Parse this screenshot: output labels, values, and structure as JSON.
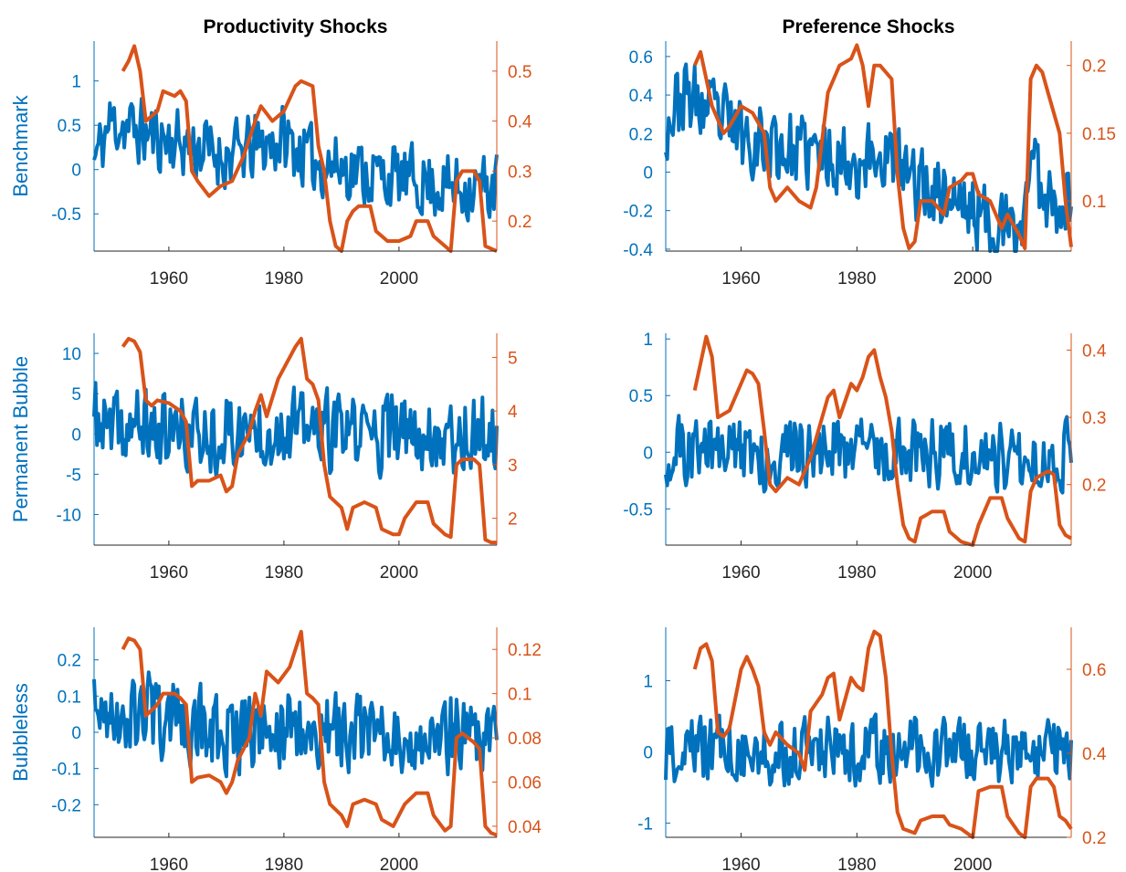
{
  "figure": {
    "column_titles": [
      "Productivity Shocks",
      "Preference Shocks"
    ],
    "row_labels": [
      "Benchmark",
      "Permanent Bubble",
      "Bubbleless"
    ],
    "colors": {
      "left_axis": "#0072BD",
      "right_axis": "#D95319",
      "axes_line": "#262626"
    }
  },
  "chart_data": [
    {
      "type": "line",
      "row": 0,
      "col": 0,
      "title": "Productivity Shocks",
      "ylabel": "Benchmark",
      "xlim": [
        1947,
        2017
      ],
      "xticks": [
        1960,
        1980,
        2000
      ],
      "ylim_left": [
        -0.92,
        1.45
      ],
      "yticks_left": [
        -0.5,
        0,
        0.5,
        1
      ],
      "ylim_right": [
        0.14,
        0.56
      ],
      "yticks_right": [
        0.2,
        0.3,
        0.4,
        0.5
      ],
      "series_left": {
        "x_start": 1947,
        "x_end": 2017,
        "jitter": 0.35,
        "seed": 11,
        "envelope": [
          1947,
          0.1,
          1950,
          0.55,
          1956,
          0.4,
          1962,
          0.3,
          1970,
          0.15,
          1980,
          0.35,
          1985,
          0.1,
          2000,
          -0.1,
          2010,
          -0.2,
          2017,
          -0.2
        ]
      },
      "series_right": {
        "points": [
          1952,
          0.5,
          1953,
          0.52,
          1954,
          0.55,
          1955,
          0.5,
          1956,
          0.4,
          1958,
          0.42,
          1959,
          0.46,
          1961,
          0.45,
          1962,
          0.46,
          1963,
          0.44,
          1964,
          0.3,
          1965,
          0.28,
          1967,
          0.25,
          1969,
          0.27,
          1971,
          0.28,
          1973,
          0.33,
          1975,
          0.4,
          1976,
          0.43,
          1978,
          0.4,
          1980,
          0.42,
          1982,
          0.47,
          1983,
          0.48,
          1985,
          0.47,
          1986,
          0.35,
          1987,
          0.3,
          1988,
          0.2,
          1989,
          0.15,
          1990,
          0.14,
          1991,
          0.2,
          1992,
          0.22,
          1993,
          0.23,
          1995,
          0.23,
          1996,
          0.18,
          1998,
          0.16,
          2000,
          0.16,
          2002,
          0.17,
          2003,
          0.2,
          2005,
          0.2,
          2006,
          0.17,
          2008,
          0.15,
          2009,
          0.14,
          2010,
          0.28,
          2011,
          0.3,
          2013,
          0.3,
          2014,
          0.28,
          2015,
          0.15,
          2016,
          0.145,
          2017,
          0.14
        ]
      }
    },
    {
      "type": "line",
      "row": 0,
      "col": 1,
      "title": "Preference Shocks",
      "ylabel": "",
      "xlim": [
        1947,
        2017
      ],
      "xticks": [
        1960,
        1980,
        2000
      ],
      "ylim_left": [
        -0.41,
        0.68
      ],
      "yticks_left": [
        -0.4,
        -0.2,
        0,
        0.2,
        0.4,
        0.6
      ],
      "ylim_right": [
        0.063,
        0.218
      ],
      "yticks_right": [
        0.1,
        0.15,
        0.2
      ],
      "series_left": {
        "x_start": 1947,
        "x_end": 2017,
        "jitter": 0.18,
        "seed": 23,
        "envelope": [
          1947,
          0.25,
          1950,
          0.4,
          1955,
          0.3,
          1960,
          0.2,
          1965,
          0.15,
          1970,
          0.1,
          1975,
          0.1,
          1980,
          0.05,
          1985,
          0.1,
          1990,
          -0.05,
          1995,
          -0.1,
          2000,
          -0.2,
          2005,
          -0.3,
          2008,
          -0.35,
          2010,
          0.1,
          2012,
          -0.1,
          2017,
          -0.15
        ]
      },
      "series_right": {
        "points": [
          1952,
          0.2,
          1953,
          0.21,
          1954,
          0.19,
          1955,
          0.17,
          1957,
          0.15,
          1958,
          0.155,
          1960,
          0.17,
          1962,
          0.165,
          1964,
          0.15,
          1965,
          0.11,
          1966,
          0.1,
          1968,
          0.11,
          1970,
          0.1,
          1972,
          0.095,
          1973,
          0.11,
          1975,
          0.18,
          1977,
          0.2,
          1979,
          0.205,
          1980,
          0.215,
          1981,
          0.2,
          1982,
          0.17,
          1983,
          0.2,
          1984,
          0.2,
          1986,
          0.19,
          1987,
          0.12,
          1988,
          0.08,
          1989,
          0.065,
          1990,
          0.07,
          1991,
          0.1,
          1993,
          0.1,
          1995,
          0.09,
          1996,
          0.11,
          1998,
          0.115,
          1999,
          0.12,
          2000,
          0.12,
          2001,
          0.105,
          2003,
          0.1,
          2005,
          0.08,
          2006,
          0.09,
          2008,
          0.075,
          2009,
          0.065,
          2010,
          0.19,
          2011,
          0.2,
          2012,
          0.195,
          2013,
          0.18,
          2015,
          0.15,
          2016,
          0.1,
          2017,
          0.066
        ]
      }
    },
    {
      "type": "line",
      "row": 1,
      "col": 0,
      "title": "",
      "ylabel": "Permanent Bubble",
      "xlim": [
        1947,
        2017
      ],
      "xticks": [
        1960,
        1980,
        2000
      ],
      "ylim_left": [
        -13.8,
        12.5
      ],
      "yticks_left": [
        -10,
        -5,
        0,
        5,
        10
      ],
      "ylim_right": [
        1.5,
        5.45
      ],
      "yticks_right": [
        2,
        3,
        4,
        5
      ],
      "series_left": {
        "x_start": 1947,
        "x_end": 2017,
        "jitter": 4.5,
        "seed": 37,
        "envelope": [
          1947,
          2,
          1950,
          0,
          1955,
          1,
          1960,
          0,
          1970,
          0,
          1980,
          1,
          1990,
          0,
          2000,
          0,
          2010,
          0,
          2017,
          0
        ]
      },
      "series_right": {
        "points": [
          1952,
          5.2,
          1953,
          5.35,
          1954,
          5.3,
          1955,
          5.1,
          1956,
          4.2,
          1957,
          4.1,
          1958,
          4.2,
          1960,
          4.15,
          1962,
          4.0,
          1963,
          3.8,
          1964,
          2.6,
          1965,
          2.7,
          1967,
          2.7,
          1969,
          2.8,
          1970,
          2.5,
          1971,
          2.6,
          1972,
          3.2,
          1974,
          3.6,
          1975,
          4.0,
          1976,
          4.3,
          1977,
          3.9,
          1979,
          4.6,
          1981,
          5.0,
          1982,
          5.2,
          1983,
          5.35,
          1984,
          4.6,
          1985,
          4.5,
          1986,
          4.2,
          1987,
          3.0,
          1988,
          2.4,
          1990,
          2.2,
          1991,
          1.8,
          1992,
          2.2,
          1994,
          2.3,
          1996,
          2.2,
          1997,
          1.8,
          1999,
          1.7,
          2000,
          1.7,
          2001,
          2.0,
          2003,
          2.3,
          2005,
          2.3,
          2006,
          1.9,
          2008,
          1.7,
          2009,
          1.65,
          2010,
          3.0,
          2011,
          3.1,
          2013,
          3.1,
          2014,
          3.0,
          2015,
          1.6,
          2016,
          1.55,
          2017,
          1.55
        ]
      }
    },
    {
      "type": "line",
      "row": 1,
      "col": 1,
      "title": "",
      "ylabel": "",
      "xlim": [
        1947,
        2017
      ],
      "xticks": [
        1960,
        1980,
        2000
      ],
      "ylim_left": [
        -0.82,
        1.05
      ],
      "yticks_left": [
        -0.5,
        0,
        0.5,
        1
      ],
      "ylim_right": [
        0.11,
        0.425
      ],
      "yticks_right": [
        0.2,
        0.3,
        0.4
      ],
      "series_left": {
        "x_start": 1947,
        "x_end": 2017,
        "jitter": 0.28,
        "seed": 51,
        "envelope": [
          1947,
          0.0,
          1950,
          0.0,
          1955,
          0.05,
          1960,
          0.0,
          1970,
          0.0,
          1980,
          0.05,
          1990,
          0.0,
          2000,
          0.0,
          2010,
          -0.05,
          2017,
          0.0
        ]
      },
      "series_right": {
        "points": [
          1952,
          0.34,
          1953,
          0.38,
          1954,
          0.42,
          1955,
          0.39,
          1956,
          0.3,
          1958,
          0.31,
          1959,
          0.33,
          1961,
          0.37,
          1962,
          0.365,
          1963,
          0.35,
          1964,
          0.28,
          1965,
          0.2,
          1966,
          0.19,
          1968,
          0.21,
          1970,
          0.2,
          1972,
          0.24,
          1974,
          0.3,
          1975,
          0.33,
          1976,
          0.34,
          1977,
          0.3,
          1979,
          0.35,
          1980,
          0.34,
          1981,
          0.36,
          1982,
          0.39,
          1983,
          0.4,
          1984,
          0.36,
          1985,
          0.33,
          1986,
          0.28,
          1987,
          0.2,
          1988,
          0.14,
          1989,
          0.12,
          1990,
          0.115,
          1991,
          0.15,
          1993,
          0.16,
          1995,
          0.16,
          1996,
          0.13,
          1998,
          0.115,
          2000,
          0.11,
          2001,
          0.14,
          2003,
          0.18,
          2005,
          0.18,
          2006,
          0.15,
          2008,
          0.12,
          2009,
          0.115,
          2010,
          0.19,
          2011,
          0.21,
          2013,
          0.22,
          2014,
          0.215,
          2015,
          0.14,
          2016,
          0.125,
          2017,
          0.12
        ]
      }
    },
    {
      "type": "line",
      "row": 2,
      "col": 0,
      "title": "",
      "ylabel": "Bubbleless",
      "xlim": [
        1947,
        2017
      ],
      "xticks": [
        1960,
        1980,
        2000
      ],
      "ylim_left": [
        -0.29,
        0.29
      ],
      "yticks_left": [
        -0.2,
        -0.1,
        0,
        0.1,
        0.2
      ],
      "ylim_right": [
        0.035,
        0.13
      ],
      "yticks_right": [
        0.04,
        0.06,
        0.08,
        0.1,
        0.12
      ],
      "series_left": {
        "x_start": 1947,
        "x_end": 2017,
        "jitter": 0.1,
        "seed": 67,
        "envelope": [
          1947,
          0.05,
          1950,
          0.05,
          1955,
          0.05,
          1960,
          0.03,
          1970,
          0.0,
          1980,
          0.02,
          1990,
          0.0,
          2000,
          -0.02,
          2010,
          0.0,
          2017,
          0.0
        ]
      },
      "series_right": {
        "points": [
          1952,
          0.12,
          1953,
          0.125,
          1954,
          0.124,
          1955,
          0.12,
          1956,
          0.09,
          1958,
          0.095,
          1959,
          0.1,
          1961,
          0.1,
          1962,
          0.098,
          1963,
          0.095,
          1964,
          0.06,
          1965,
          0.062,
          1967,
          0.063,
          1969,
          0.06,
          1970,
          0.055,
          1971,
          0.06,
          1972,
          0.07,
          1974,
          0.08,
          1975,
          0.1,
          1976,
          0.09,
          1977,
          0.11,
          1979,
          0.105,
          1981,
          0.112,
          1982,
          0.12,
          1983,
          0.128,
          1984,
          0.1,
          1985,
          0.098,
          1986,
          0.095,
          1987,
          0.06,
          1988,
          0.05,
          1990,
          0.045,
          1991,
          0.04,
          1992,
          0.05,
          1994,
          0.052,
          1996,
          0.05,
          1997,
          0.043,
          1999,
          0.04,
          2000,
          0.045,
          2001,
          0.05,
          2003,
          0.055,
          2005,
          0.055,
          2006,
          0.045,
          2008,
          0.038,
          2009,
          0.04,
          2010,
          0.08,
          2011,
          0.082,
          2013,
          0.078,
          2014,
          0.075,
          2015,
          0.04,
          2016,
          0.037,
          2017,
          0.036
        ]
      }
    },
    {
      "type": "line",
      "row": 2,
      "col": 1,
      "title": "",
      "ylabel": "",
      "xlim": [
        1947,
        2017
      ],
      "xticks": [
        1960,
        1980,
        2000
      ],
      "ylim_left": [
        -1.2,
        1.75
      ],
      "yticks_left": [
        -1,
        0,
        1
      ],
      "ylim_right": [
        0.2,
        0.7
      ],
      "yticks_right": [
        0.2,
        0.4,
        0.6
      ],
      "series_left": {
        "x_start": 1947,
        "x_end": 2017,
        "jitter": 0.42,
        "seed": 79,
        "envelope": [
          1947,
          0.0,
          1950,
          0.05,
          1955,
          0.05,
          1960,
          0.0,
          1970,
          0.0,
          1980,
          0.05,
          1990,
          0.0,
          2000,
          0.0,
          2010,
          0.0,
          2017,
          0.0
        ]
      },
      "series_right": {
        "points": [
          1952,
          0.6,
          1953,
          0.65,
          1954,
          0.66,
          1955,
          0.62,
          1956,
          0.45,
          1957,
          0.44,
          1958,
          0.46,
          1960,
          0.6,
          1961,
          0.63,
          1962,
          0.6,
          1963,
          0.56,
          1964,
          0.45,
          1965,
          0.42,
          1966,
          0.45,
          1968,
          0.42,
          1970,
          0.4,
          1971,
          0.36,
          1972,
          0.5,
          1974,
          0.54,
          1975,
          0.58,
          1976,
          0.59,
          1977,
          0.48,
          1979,
          0.58,
          1980,
          0.56,
          1981,
          0.55,
          1982,
          0.65,
          1983,
          0.69,
          1984,
          0.68,
          1985,
          0.58,
          1986,
          0.4,
          1987,
          0.26,
          1988,
          0.22,
          1990,
          0.21,
          1991,
          0.24,
          1993,
          0.25,
          1995,
          0.25,
          1996,
          0.23,
          1998,
          0.22,
          2000,
          0.2,
          2001,
          0.31,
          2003,
          0.32,
          2005,
          0.32,
          2006,
          0.25,
          2008,
          0.21,
          2009,
          0.2,
          2010,
          0.32,
          2011,
          0.34,
          2013,
          0.34,
          2014,
          0.32,
          2015,
          0.25,
          2016,
          0.24,
          2017,
          0.22
        ]
      }
    }
  ]
}
